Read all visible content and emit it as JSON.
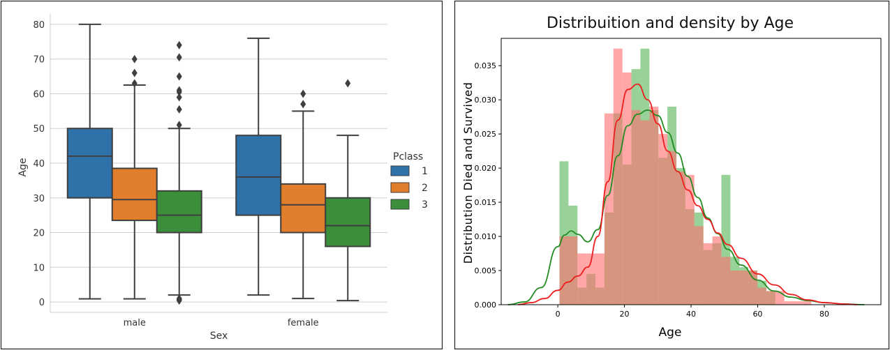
{
  "charts": [
    {
      "type": "box",
      "title": "",
      "xlabel": "Sex",
      "ylabel": "Age",
      "ylim": [
        -3,
        83
      ],
      "yticks": [
        0,
        10,
        20,
        30,
        40,
        50,
        60,
        70,
        80
      ],
      "grid": true,
      "categories": [
        "male",
        "female"
      ],
      "legend": {
        "title": "Pclass",
        "position": "right",
        "entries": [
          "1",
          "2",
          "3"
        ]
      },
      "colors": {
        "1": "#2f72aa",
        "2": "#e07e2c",
        "3": "#3b8e3a"
      },
      "series": [
        {
          "name": "1",
          "boxes": [
            {
              "category": "male",
              "min": 0.9,
              "q1": 30,
              "median": 42,
              "q3": 50,
              "max": 80,
              "outliers": []
            },
            {
              "category": "female",
              "min": 2,
              "q1": 25,
              "median": 36,
              "q3": 48,
              "max": 76,
              "outliers": []
            }
          ]
        },
        {
          "name": "2",
          "boxes": [
            {
              "category": "male",
              "min": 0.9,
              "q1": 23.5,
              "median": 29.5,
              "q3": 38.5,
              "max": 62.5,
              "outliers": [
                63,
                66,
                70
              ]
            },
            {
              "category": "female",
              "min": 1,
              "q1": 20,
              "median": 28,
              "q3": 34,
              "max": 55,
              "outliers": [
                57,
                60
              ]
            }
          ]
        },
        {
          "name": "3",
          "boxes": [
            {
              "category": "male",
              "min": 2,
              "q1": 20,
              "median": 25,
              "q3": 32,
              "max": 50,
              "outliers": [
                0.4,
                0.7,
                1,
                51,
                55.5,
                59,
                60.5,
                61,
                65,
                70.5,
                74
              ]
            },
            {
              "category": "female",
              "min": 0.4,
              "q1": 16,
              "median": 22,
              "q3": 30,
              "max": 48,
              "outliers": [
                63
              ]
            }
          ]
        }
      ]
    },
    {
      "type": "histogram",
      "title": "Distribuition and density by Age",
      "xlabel": "Age",
      "ylabel": "Distribution Died and Survived",
      "xlim": [
        -17,
        97
      ],
      "ylim": [
        0,
        0.039
      ],
      "xticks": [
        0,
        20,
        40,
        60,
        80
      ],
      "yticks": [
        0.0,
        0.005,
        0.01,
        0.015,
        0.02,
        0.025,
        0.03,
        0.035
      ],
      "grid": false,
      "colors": {
        "died": "#ff6d6d",
        "survived": "#6cbf6c",
        "overlap": "#b5704a",
        "died_line": "#ee1c1c",
        "survived_line": "#228b22"
      },
      "died": {
        "bin_width": 2.7,
        "bins_start": 0.5,
        "values": [
          0.01,
          0.01,
          0.0075,
          0.0075,
          0.0075,
          0.028,
          0.0375,
          0.034,
          0.0285,
          0.027,
          0.029,
          0.025,
          0.0225,
          0.0195,
          0.019,
          0.0115,
          0.009,
          0.01,
          0.007,
          0.005,
          0.005,
          0.005,
          0.0025,
          0.002,
          0.002,
          0.0005,
          0.0005,
          0.0005
        ]
      },
      "survived": {
        "bin_width": 2.7,
        "bins_start": 0.5,
        "values": [
          0.021,
          0.0145,
          0.0025,
          0.0045,
          0.0025,
          0.0135,
          0.028,
          0.0205,
          0.0345,
          0.0375,
          0.0285,
          0.0215,
          0.029,
          0.02,
          0.014,
          0.0135,
          0.008,
          0.009,
          0.019,
          0.007,
          0.0055,
          0.005,
          0.0035,
          0.002,
          0,
          0,
          0,
          0
        ]
      },
      "died_kde": {
        "x": [
          -12,
          -8,
          -4,
          0,
          3,
          6,
          9,
          12,
          15,
          18,
          21,
          24,
          27,
          30,
          33,
          36,
          39,
          42,
          45,
          48,
          51,
          55,
          60,
          65,
          70,
          75,
          80,
          86,
          90
        ],
        "y": [
          0,
          0.0003,
          0.0009,
          0.0021,
          0.0033,
          0.0042,
          0.0055,
          0.01,
          0.018,
          0.027,
          0.0315,
          0.0323,
          0.03,
          0.0265,
          0.0225,
          0.0195,
          0.0168,
          0.0145,
          0.0125,
          0.0105,
          0.0088,
          0.0068,
          0.0045,
          0.0029,
          0.0015,
          0.0007,
          0.0003,
          0.0001,
          0
        ]
      },
      "survived_kde": {
        "x": [
          -15,
          -10,
          -5,
          0,
          2,
          4,
          6,
          9,
          12,
          15,
          18,
          21,
          24,
          27,
          30,
          33,
          36,
          39,
          42,
          45,
          48,
          51,
          55,
          60,
          65,
          70,
          75,
          80,
          86,
          92
        ],
        "y": [
          0,
          0.0004,
          0.0025,
          0.0085,
          0.0102,
          0.0108,
          0.0103,
          0.0092,
          0.011,
          0.016,
          0.0218,
          0.0262,
          0.0279,
          0.0285,
          0.0277,
          0.0252,
          0.0222,
          0.0188,
          0.0157,
          0.0127,
          0.0104,
          0.0081,
          0.0058,
          0.0036,
          0.002,
          0.0011,
          0.0006,
          0.0003,
          0.0001,
          0
        ]
      }
    }
  ]
}
